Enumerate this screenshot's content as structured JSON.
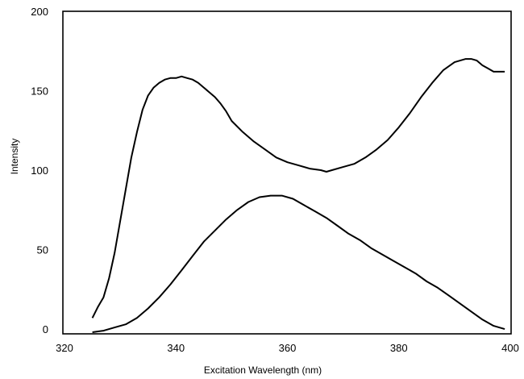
{
  "chart_data": {
    "type": "line",
    "title": "",
    "xlabel": "Excitation Wavelength (nm)",
    "ylabel": "Intensity",
    "xlim": [
      320,
      400
    ],
    "ylim": [
      -3,
      200
    ],
    "xticks": [
      320,
      340,
      360,
      380,
      400
    ],
    "yticks": [
      0,
      50,
      100,
      150,
      200
    ],
    "grid": false,
    "legend": "none",
    "line_color": "#000000",
    "series": [
      {
        "x": [
          325,
          326,
          327,
          328,
          329,
          330,
          331,
          332,
          333,
          334,
          335,
          336,
          337,
          338,
          339,
          340,
          341,
          342,
          343,
          344,
          345,
          346,
          347,
          348,
          349,
          350,
          352,
          354,
          356,
          358,
          360,
          362,
          364,
          366,
          367,
          368,
          370,
          372,
          374,
          376,
          378,
          380,
          382,
          384,
          386,
          388,
          390,
          392,
          393,
          394,
          395,
          396,
          397,
          398,
          399
        ],
        "y": [
          7,
          14,
          20,
          32,
          48,
          68,
          88,
          108,
          124,
          138,
          147,
          152,
          155,
          157,
          158,
          158,
          159,
          158,
          157,
          155,
          152,
          149,
          146,
          142,
          137,
          131,
          124,
          118,
          113,
          108,
          105,
          103,
          101,
          100,
          99,
          100,
          102,
          104,
          108,
          113,
          119,
          127,
          136,
          146,
          155,
          163,
          168,
          170,
          170,
          169,
          166,
          164,
          162,
          162,
          162
        ]
      },
      {
        "x": [
          325,
          327,
          329,
          331,
          333,
          335,
          337,
          339,
          341,
          343,
          345,
          347,
          349,
          351,
          353,
          355,
          357,
          359,
          361,
          363,
          365,
          367,
          369,
          371,
          373,
          375,
          377,
          379,
          381,
          383,
          385,
          387,
          389,
          391,
          393,
          395,
          397,
          399
        ],
        "y": [
          -2,
          -1,
          1,
          3,
          7,
          13,
          20,
          28,
          37,
          46,
          55,
          62,
          69,
          75,
          80,
          83,
          84,
          84,
          82,
          78,
          74,
          70,
          65,
          60,
          56,
          51,
          47,
          43,
          39,
          35,
          30,
          26,
          21,
          16,
          11,
          6,
          2,
          0
        ]
      }
    ]
  }
}
